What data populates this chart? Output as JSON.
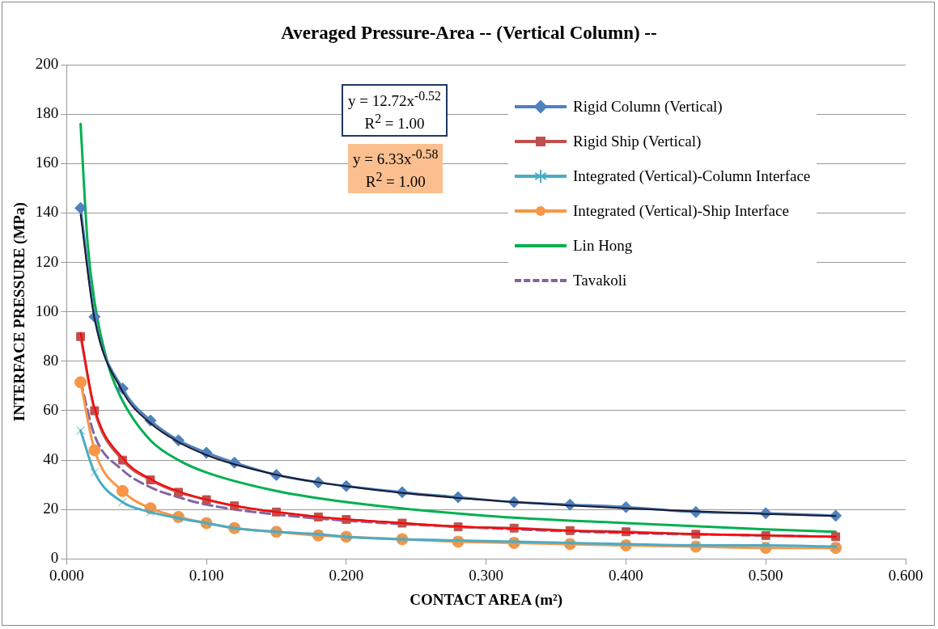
{
  "chart_data": {
    "type": "line",
    "title": "Averaged Pressure-Area -- (Vertical Column) --",
    "xlabel": "CONTACT AREA (m²)",
    "ylabel": "INTERFACE PRESSURE (MPa)",
    "xlim": [
      0,
      0.6
    ],
    "xticks": [
      {
        "value": 0,
        "label": "0.000"
      },
      {
        "value": 0.1,
        "label": "0.100"
      },
      {
        "value": 0.2,
        "label": "0.200"
      },
      {
        "value": 0.3,
        "label": "0.300"
      },
      {
        "value": 0.4,
        "label": "0.400"
      },
      {
        "value": 0.5,
        "label": "0.500"
      },
      {
        "value": 0.6,
        "label": "0.600"
      }
    ],
    "ylim": [
      0,
      200
    ],
    "yticks": [
      0,
      20,
      40,
      60,
      80,
      100,
      120,
      140,
      160,
      180,
      200
    ],
    "grid": "y",
    "legend": "top right",
    "line_style": "solid",
    "annotations": [
      "y = 12.72x$^{-0.52}$\nR$^{2}$ = 1.00",
      "y = 6.33x$^{-0.58}$\nR$^{2}$ = 1.00"
    ],
    "series": [
      {
        "name": "Rigid Column (Vertical)",
        "color": "#4f81bd",
        "marker": "diamond",
        "x": [
          0.01,
          0.02,
          0.04,
          0.06,
          0.08,
          0.1,
          0.12,
          0.15,
          0.18,
          0.2,
          0.24,
          0.28,
          0.32,
          0.36,
          0.4,
          0.45,
          0.5,
          0.55
        ],
        "values": [
          142,
          98,
          69,
          56,
          48,
          43,
          39,
          34,
          31,
          29.5,
          27,
          25,
          23,
          22,
          21,
          19,
          18.5,
          17.5
        ]
      },
      {
        "name": "Rigid Ship (Vertical)",
        "color": "#c0504d",
        "marker": "square",
        "x": [
          0.01,
          0.02,
          0.04,
          0.06,
          0.08,
          0.1,
          0.12,
          0.15,
          0.18,
          0.2,
          0.24,
          0.28,
          0.32,
          0.36,
          0.4,
          0.45,
          0.5,
          0.55
        ],
        "values": [
          90,
          60,
          40,
          32,
          27,
          24,
          21.5,
          19,
          17,
          16,
          14.5,
          13,
          12.5,
          11.5,
          11,
          10,
          9.5,
          9
        ]
      },
      {
        "name": "Integrated (Vertical)-Column Interface",
        "color": "#4bacc6",
        "marker": "cross",
        "x": [
          0.01,
          0.02,
          0.04,
          0.06,
          0.08,
          0.1,
          0.12,
          0.15,
          0.18,
          0.2,
          0.24,
          0.28,
          0.32,
          0.36,
          0.4,
          0.45,
          0.5,
          0.55
        ],
        "values": [
          52,
          35,
          23,
          19,
          16.5,
          14.5,
          12.5,
          11,
          10,
          9,
          8,
          7.5,
          7,
          6.5,
          6,
          5.5,
          5.5,
          5
        ]
      },
      {
        "name": "Integrated (Vertical)-Ship Interface",
        "color": "#f79646",
        "marker": "circle",
        "x": [
          0.01,
          0.02,
          0.04,
          0.06,
          0.08,
          0.1,
          0.12,
          0.15,
          0.18,
          0.2,
          0.24,
          0.28,
          0.32,
          0.36,
          0.4,
          0.45,
          0.5,
          0.55
        ],
        "values": [
          71.5,
          44,
          27.5,
          20.5,
          17,
          14.5,
          12.5,
          11,
          9.5,
          9,
          8,
          7,
          6.5,
          6,
          5.5,
          5,
          4.5,
          4.5
        ]
      },
      {
        "name": "Lin Hong",
        "color": "#00b050",
        "marker": "none",
        "x": [
          0.01,
          0.015,
          0.02,
          0.03,
          0.04,
          0.06,
          0.08,
          0.1,
          0.15,
          0.2,
          0.3,
          0.4,
          0.5,
          0.55
        ],
        "values": [
          176,
          128,
          104,
          78,
          64,
          48,
          40,
          35,
          27.5,
          23,
          17.5,
          14.5,
          12,
          11
        ]
      },
      {
        "name": "Tavakoli",
        "color": "#8064a2",
        "marker": "none",
        "line_style": "dashed",
        "x": [
          0.01,
          0.02,
          0.04,
          0.06,
          0.08,
          0.1,
          0.15,
          0.2,
          0.3,
          0.4,
          0.5,
          0.55
        ],
        "values": [
          72,
          50,
          36,
          29,
          25,
          22,
          18,
          15.5,
          12.5,
          10.5,
          9.5,
          9
        ]
      },
      {
        "color": "#1a1a2e",
        "marker": "none",
        "x": [
          0.01,
          0.02,
          0.04,
          0.06,
          0.08,
          0.1,
          0.12,
          0.15,
          0.18,
          0.2,
          0.24,
          0.28,
          0.32,
          0.36,
          0.4,
          0.45,
          0.5,
          0.55
        ],
        "values": [
          139.4,
          97.2,
          67.8,
          54.9,
          47.3,
          42.1,
          38.3,
          34.1,
          31,
          29.4,
          26.7,
          24.7,
          23,
          21.6,
          20.5,
          19.3,
          18.2,
          17.4
        ]
      },
      {
        "color": "#ff0000",
        "marker": "none",
        "x": [
          0.01,
          0.02,
          0.04,
          0.06,
          0.08,
          0.1,
          0.12,
          0.15,
          0.18,
          0.2,
          0.24,
          0.28,
          0.32,
          0.36,
          0.4,
          0.45,
          0.5,
          0.55
        ],
        "values": [
          91.5,
          61.2,
          40.9,
          32.4,
          27.4,
          24.1,
          21.6,
          19,
          17.1,
          16.1,
          14.5,
          13.2,
          12.3,
          11.4,
          10.8,
          10.1,
          9.5,
          9
        ]
      }
    ]
  }
}
